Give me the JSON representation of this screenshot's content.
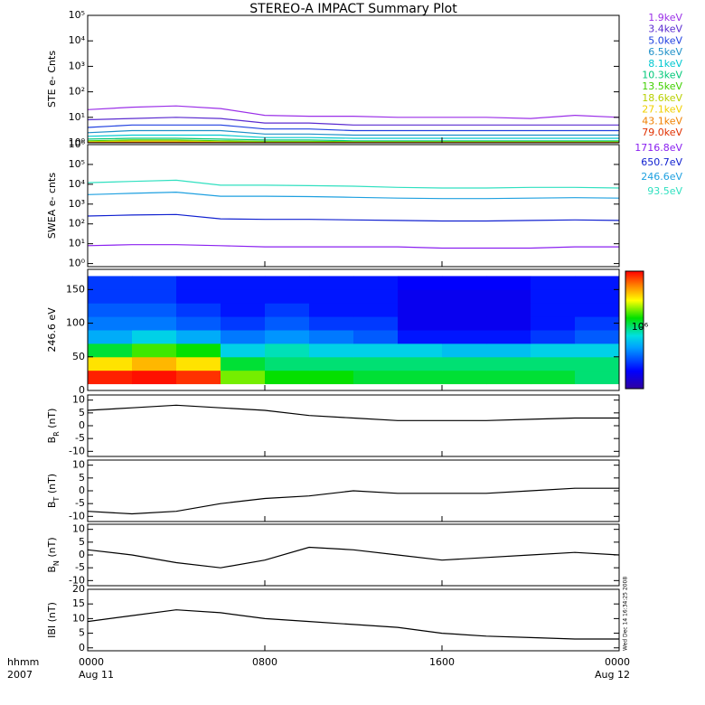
{
  "title": "STEREO-A IMPACT Summary Plot",
  "timestamp": "Wed Dec 14 16:34:25 2008",
  "x_axis": {
    "xlim": [
      0,
      24
    ],
    "xticks": [
      {
        "value": 0,
        "label": "0000"
      },
      {
        "value": 8,
        "label": "0800"
      },
      {
        "value": 16,
        "label": "1600"
      },
      {
        "value": 24,
        "label": "0000"
      }
    ],
    "date_labels": [
      {
        "value": 0,
        "label": "Aug 11"
      },
      {
        "value": 24,
        "label": "Aug 12"
      }
    ],
    "corner_labels": [
      "hhmm",
      "2007"
    ]
  },
  "chart_data": [
    {
      "type": "line",
      "ylabel": "STE e- Cnts",
      "log": true,
      "ylim": [
        1,
        100000
      ],
      "yticks": [
        {
          "value": 1,
          "label": "10⁰"
        },
        {
          "value": 10,
          "label": "10¹"
        },
        {
          "value": 100,
          "label": "10²"
        },
        {
          "value": 1000,
          "label": "10³"
        },
        {
          "value": 10000,
          "label": "10⁴"
        },
        {
          "value": 100000,
          "label": "10⁵"
        }
      ],
      "x": [
        0,
        2,
        4,
        6,
        8,
        10,
        12,
        14,
        16,
        18,
        20,
        22,
        24
      ],
      "series": [
        {
          "name": "1.9keV",
          "color": "#9b30e8",
          "values": [
            20,
            25,
            28,
            22,
            12,
            11,
            11,
            10,
            10,
            10,
            9,
            12,
            10
          ]
        },
        {
          "name": "3.4keV",
          "color": "#5a2bd0",
          "values": [
            8,
            9,
            10,
            9,
            6,
            6,
            5,
            5,
            5,
            5,
            5,
            5,
            5
          ]
        },
        {
          "name": "5.0keV",
          "color": "#2040e0",
          "values": [
            4,
            5,
            5,
            5,
            3.5,
            3.5,
            3,
            3,
            3,
            3,
            3,
            3,
            3
          ]
        },
        {
          "name": "6.5keV",
          "color": "#1e90c8",
          "values": [
            2.5,
            3,
            3,
            3,
            2.2,
            2.2,
            2,
            2,
            2,
            2,
            2,
            2,
            2
          ]
        },
        {
          "name": "8.1keV",
          "color": "#00c8d0",
          "values": [
            1.8,
            2,
            2,
            2,
            1.6,
            1.6,
            1.5,
            1.5,
            1.5,
            1.5,
            1.5,
            1.5,
            1.5
          ]
        },
        {
          "name": "10.3keV",
          "color": "#00c878",
          "values": [
            1.4,
            1.5,
            1.5,
            1.4,
            1.3,
            1.3,
            1.2,
            1.2,
            1.2,
            1.2,
            1.2,
            1.2,
            1.2
          ]
        },
        {
          "name": "13.5keV",
          "color": "#40d000",
          "values": [
            1.2,
            1.3,
            1.3,
            1.2,
            1.15,
            1.15,
            1.1,
            1.1,
            1.1,
            1.1,
            1.1,
            1.1,
            1.1
          ]
        },
        {
          "name": "18.6keV",
          "color": "#b8d000",
          "values": [
            1.1,
            1.2,
            1.2,
            1.1,
            1.05,
            1.05,
            1.05,
            1.05,
            1.05,
            1.05,
            1.05,
            1.05,
            1.05
          ]
        },
        {
          "name": "27.1keV",
          "color": "#f0d000",
          "values": [
            1.05,
            1.1,
            1.1,
            1.05,
            1.02,
            1.02,
            1.02,
            1.02,
            1.02,
            1.02,
            1.02,
            1.02,
            1.02
          ]
        },
        {
          "name": "43.1keV",
          "color": "#f08000",
          "values": [
            1.02,
            1.05,
            1.05,
            1.02,
            1.01,
            1.01,
            1.01,
            1.01,
            1.01,
            1.01,
            1.01,
            1.01,
            1.01
          ]
        },
        {
          "name": "79.0keV",
          "color": "#e03000",
          "values": [
            1.01,
            1.02,
            1.02,
            1.01,
            1,
            1,
            1,
            1,
            1,
            1,
            1,
            1,
            1
          ]
        }
      ]
    },
    {
      "type": "line",
      "ylabel": "SWEA e- cnts",
      "log": true,
      "ylim": [
        0.7,
        1000000
      ],
      "yticks": [
        {
          "value": 1,
          "label": "10⁰"
        },
        {
          "value": 10,
          "label": "10¹"
        },
        {
          "value": 100,
          "label": "10²"
        },
        {
          "value": 1000,
          "label": "10³"
        },
        {
          "value": 10000,
          "label": "10⁴"
        },
        {
          "value": 100000,
          "label": "10⁵"
        },
        {
          "value": 1000000,
          "label": "10⁶"
        }
      ],
      "x": [
        0,
        2,
        4,
        6,
        8,
        10,
        12,
        14,
        16,
        18,
        20,
        22,
        24
      ],
      "series": [
        {
          "name": "1716.8eV",
          "color": "#8a20f0",
          "values": [
            8,
            9,
            9,
            8,
            7,
            7,
            7,
            7,
            6,
            6,
            6,
            7,
            7
          ]
        },
        {
          "name": "650.7eV",
          "color": "#1020d0",
          "values": [
            250,
            280,
            300,
            180,
            170,
            170,
            160,
            150,
            140,
            140,
            150,
            160,
            150
          ]
        },
        {
          "name": "246.6eV",
          "color": "#1ea0e0",
          "values": [
            3000,
            3500,
            4000,
            2500,
            2500,
            2400,
            2200,
            2000,
            1900,
            1900,
            2000,
            2100,
            2000
          ]
        },
        {
          "name": "93.5eV",
          "color": "#30e0c0",
          "values": [
            12000,
            14000,
            16000,
            9000,
            9000,
            8500,
            8000,
            7000,
            6500,
            6500,
            7000,
            7000,
            6500
          ]
        }
      ]
    },
    {
      "type": "heatmap",
      "ylabel": "246.6 eV",
      "ylim": [
        0,
        180
      ],
      "yticks": [
        0,
        50,
        100,
        150
      ],
      "x_edges": [
        0,
        2,
        4,
        6,
        8,
        10,
        12,
        14,
        16,
        18,
        20,
        22,
        24
      ],
      "y_edges": [
        10,
        30,
        50,
        70,
        90,
        110,
        130,
        150,
        170
      ],
      "z": [
        [
          2800000,
          2900000,
          2700000,
          1400000,
          1200000,
          1200000,
          1100000,
          1100000,
          1100000,
          1100000,
          1100000,
          1000000
        ],
        [
          1800000,
          2000000,
          1800000,
          1100000,
          1000000,
          1000000,
          1000000,
          1000000,
          1000000,
          1000000,
          1000000,
          1000000
        ],
        [
          1100000,
          1300000,
          1200000,
          800000,
          900000,
          800000,
          800000,
          800000,
          750000,
          750000,
          800000,
          800000
        ],
        [
          700000,
          800000,
          700000,
          600000,
          650000,
          600000,
          550000,
          450000,
          450000,
          450000,
          500000,
          550000
        ],
        [
          600000,
          600000,
          550000,
          500000,
          550000,
          500000,
          500000,
          400000,
          400000,
          400000,
          450000,
          500000
        ],
        [
          550000,
          550000,
          500000,
          450000,
          500000,
          450000,
          450000,
          400000,
          400000,
          400000,
          450000,
          450000
        ],
        [
          500000,
          500000,
          450000,
          450000,
          450000,
          450000,
          450000,
          400000,
          400000,
          400000,
          450000,
          450000
        ],
        [
          500000,
          500000,
          450000,
          450000,
          450000,
          450000,
          450000,
          420000,
          420000,
          420000,
          450000,
          450000
        ]
      ],
      "zlim": [
        300000,
        3000000
      ],
      "zlog": true,
      "zticks": [
        {
          "value": 1000000,
          "label": "10⁶"
        }
      ]
    },
    {
      "type": "line",
      "ylabel": {
        "base": "B",
        "sub": "R",
        "unit": " (nT)"
      },
      "ylim": [
        -12,
        12
      ],
      "yticks": [
        -10,
        -5,
        0,
        5,
        10
      ],
      "x": [
        0,
        2,
        4,
        6,
        8,
        10,
        12,
        14,
        16,
        18,
        20,
        22,
        24
      ],
      "series": [
        {
          "color": "#000000",
          "values": [
            6,
            7,
            8,
            7,
            6,
            4,
            3,
            2,
            2,
            2,
            2.5,
            3,
            3
          ]
        }
      ]
    },
    {
      "type": "line",
      "ylabel": {
        "base": "B",
        "sub": "T",
        "unit": " (nT)"
      },
      "ylim": [
        -12,
        12
      ],
      "yticks": [
        -10,
        -5,
        0,
        5,
        10
      ],
      "x": [
        0,
        2,
        4,
        6,
        8,
        10,
        12,
        14,
        16,
        18,
        20,
        22,
        24
      ],
      "series": [
        {
          "color": "#000000",
          "values": [
            -8,
            -9,
            -8,
            -5,
            -3,
            -2,
            0,
            -1,
            -1,
            -1,
            0,
            1,
            1
          ]
        }
      ]
    },
    {
      "type": "line",
      "ylabel": {
        "base": "B",
        "sub": "N",
        "unit": " (nT)"
      },
      "ylim": [
        -12,
        12
      ],
      "yticks": [
        -10,
        -5,
        0,
        5,
        10
      ],
      "x": [
        0,
        2,
        4,
        6,
        8,
        10,
        12,
        14,
        16,
        18,
        20,
        22,
        24
      ],
      "series": [
        {
          "color": "#000000",
          "values": [
            2,
            0,
            -3,
            -5,
            -2,
            3,
            2,
            0,
            -2,
            -1,
            0,
            1,
            0
          ]
        }
      ]
    },
    {
      "type": "line",
      "ylabel": "IBI (nT)",
      "ylim": [
        -1,
        20
      ],
      "yticks": [
        0,
        5,
        10,
        15,
        20
      ],
      "x": [
        0,
        2,
        4,
        6,
        8,
        10,
        12,
        14,
        16,
        18,
        20,
        22,
        24
      ],
      "series": [
        {
          "color": "#000000",
          "values": [
            9,
            11,
            13,
            12,
            10,
            9,
            8,
            7,
            5,
            4,
            3.5,
            3,
            3
          ]
        }
      ]
    }
  ]
}
